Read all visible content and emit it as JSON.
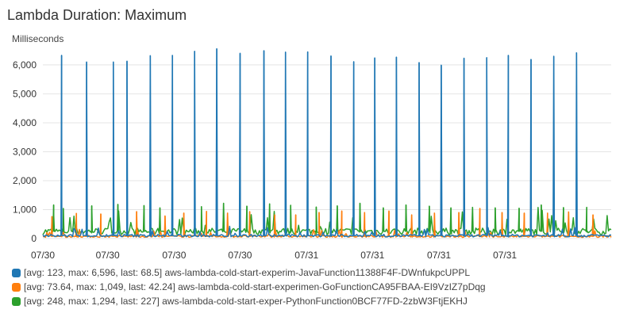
{
  "header": {
    "title": "Lambda Duration: Maximum"
  },
  "chart_data": {
    "type": "line",
    "title": "Lambda Duration: Maximum",
    "ylabel": "Milliseconds",
    "xlabel": "",
    "ylim": [
      0,
      6600
    ],
    "yticks": [
      0,
      1000,
      2000,
      3000,
      4000,
      5000,
      6000
    ],
    "ytick_labels": [
      "0",
      "1,000",
      "2,000",
      "3,000",
      "4,000",
      "5,000",
      "6,000"
    ],
    "xlim": [
      0,
      100
    ],
    "xticks": [
      0,
      11.4,
      23.1,
      34.7,
      46.4,
      58.0,
      69.7,
      81.3
    ],
    "xtick_labels": [
      "07/30",
      "07/30",
      "07/30",
      "07/30",
      "07/31",
      "07/31",
      "07/31",
      "07/31"
    ],
    "grid": "horizontal",
    "series": [
      {
        "name": "aws-lambda-cold-start-experim-JavaFunction11388F4F-DWnfukpcUPPL",
        "legend": "[avg: 123, max: 6,596, last: 68.5] aws-lambda-cold-start-experim-JavaFunction11388F4F-DWnfukpcUPPL",
        "color": "#1f77b4",
        "baseline": 100,
        "spikes": [
          [
            3.3,
            6330
          ],
          [
            7.7,
            6100
          ],
          [
            12.4,
            6100
          ],
          [
            14.8,
            6130
          ],
          [
            18.9,
            6320
          ],
          [
            22.8,
            6330
          ],
          [
            26.7,
            6470
          ],
          [
            30.6,
            6560
          ],
          [
            34.7,
            6400
          ],
          [
            38.9,
            6490
          ],
          [
            42.7,
            6440
          ],
          [
            46.6,
            6450
          ],
          [
            50.7,
            6310
          ],
          [
            54.7,
            6110
          ],
          [
            58.4,
            6240
          ],
          [
            62.2,
            6270
          ],
          [
            66.2,
            6080
          ],
          [
            70.1,
            5990
          ],
          [
            74.1,
            6230
          ],
          [
            78.1,
            6250
          ],
          [
            81.9,
            6330
          ],
          [
            85.9,
            6190
          ],
          [
            89.9,
            6300
          ],
          [
            93.9,
            6420
          ]
        ]
      },
      {
        "name": "aws-lambda-cold-start-experimen-GoFunctionCA95FBAA-EI9VzIZ7pDqg",
        "legend": "[avg: 73.64, max: 1,049, last: 42.24] aws-lambda-cold-start-experimen-GoFunctionCA95FBAA-EI9VzIZ7pDqg",
        "color": "#ff7f0e",
        "baseline": 75,
        "spikes": [
          [
            1.6,
            760
          ],
          [
            5.9,
            870
          ],
          [
            10.2,
            850
          ],
          [
            16.5,
            930
          ],
          [
            21.5,
            780
          ],
          [
            24.8,
            880
          ],
          [
            28.8,
            940
          ],
          [
            32.5,
            880
          ],
          [
            36.4,
            930
          ],
          [
            40.8,
            820
          ],
          [
            44.5,
            820
          ],
          [
            48.6,
            900
          ],
          [
            52.6,
            950
          ],
          [
            56.6,
            900
          ],
          [
            60.9,
            950
          ],
          [
            64.9,
            820
          ],
          [
            68.9,
            880
          ],
          [
            73.2,
            900
          ],
          [
            76.9,
            1040
          ],
          [
            80.8,
            900
          ],
          [
            84.7,
            880
          ],
          [
            88.8,
            880
          ],
          [
            92.5,
            920
          ],
          [
            96.8,
            820
          ]
        ]
      },
      {
        "name": "aws-lambda-cold-start-exper-PythonFunction0BCF77FD-2zbW3FtjEKHJ",
        "legend": "[avg: 248, max: 1,294, last: 227] aws-lambda-cold-start-exper-PythonFunction0BCF77FD-2zbW3FtjEKHJ",
        "color": "#2ca02c",
        "baseline": 250,
        "spikes": [
          [
            1.9,
            1160
          ],
          [
            3.6,
            1040
          ],
          [
            8.6,
            1130
          ],
          [
            13.2,
            1180
          ],
          [
            17.8,
            1140
          ],
          [
            20.6,
            1060
          ],
          [
            27.9,
            1100
          ],
          [
            31.8,
            1220
          ],
          [
            35.9,
            1120
          ],
          [
            39.9,
            1200
          ],
          [
            43.6,
            1150
          ],
          [
            48.1,
            1090
          ],
          [
            51.8,
            1130
          ],
          [
            55.8,
            1220
          ],
          [
            59.9,
            1060
          ],
          [
            63.9,
            1160
          ],
          [
            68.0,
            1120
          ],
          [
            71.8,
            1060
          ],
          [
            75.6,
            1080
          ],
          [
            79.6,
            1060
          ],
          [
            83.8,
            1050
          ],
          [
            87.7,
            1160
          ],
          [
            91.6,
            1070
          ],
          [
            95.7,
            1080
          ]
        ]
      }
    ]
  }
}
